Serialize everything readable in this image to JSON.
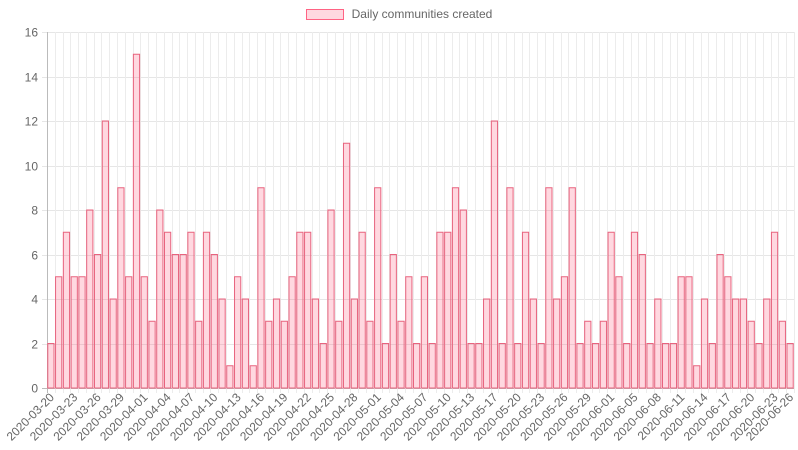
{
  "legend": {
    "label": "Daily communities created",
    "border_color": "#ff6384",
    "fill_color": "rgba(255,99,132,0.25)"
  },
  "chart_data": {
    "type": "bar",
    "ylim": [
      0,
      16
    ],
    "y_ticks": [
      0,
      2,
      4,
      6,
      8,
      10,
      12,
      14,
      16
    ],
    "grid": true,
    "legend_position": "top",
    "x_tick_labels": [
      "2020-03-20",
      "2020-03-23",
      "2020-03-26",
      "2020-03-29",
      "2020-04-01",
      "2020-04-04",
      "2020-04-07",
      "2020-04-10",
      "2020-04-13",
      "2020-04-16",
      "2020-04-19",
      "2020-04-22",
      "2020-04-25",
      "2020-04-28",
      "2020-05-01",
      "2020-05-04",
      "2020-05-07",
      "2020-05-10",
      "2020-05-13",
      "2020-05-17",
      "2020-05-20",
      "2020-05-23",
      "2020-05-26",
      "2020-05-29",
      "2020-06-01",
      "2020-06-05",
      "2020-06-08",
      "2020-06-11",
      "2020-06-14",
      "2020-06-17",
      "2020-06-20",
      "2020-06-23",
      "2020-06-26"
    ],
    "series": [
      {
        "name": "Daily communities created",
        "values": [
          2,
          5,
          7,
          5,
          5,
          8,
          6,
          12,
          4,
          9,
          5,
          15,
          5,
          3,
          8,
          7,
          6,
          6,
          7,
          3,
          7,
          6,
          4,
          1,
          5,
          4,
          1,
          9,
          3,
          4,
          3,
          5,
          7,
          7,
          4,
          2,
          8,
          3,
          11,
          4,
          7,
          3,
          9,
          2,
          6,
          3,
          5,
          2,
          5,
          2,
          7,
          7,
          9,
          8,
          2,
          2,
          4,
          12,
          2,
          9,
          2,
          7,
          4,
          2,
          9,
          4,
          5,
          9,
          2,
          3,
          2,
          3,
          7,
          5,
          2,
          7,
          6,
          2,
          4,
          2,
          2,
          5,
          5,
          1,
          4,
          2,
          6,
          5,
          4,
          4,
          3,
          2,
          4,
          7,
          3,
          2
        ]
      }
    ]
  }
}
